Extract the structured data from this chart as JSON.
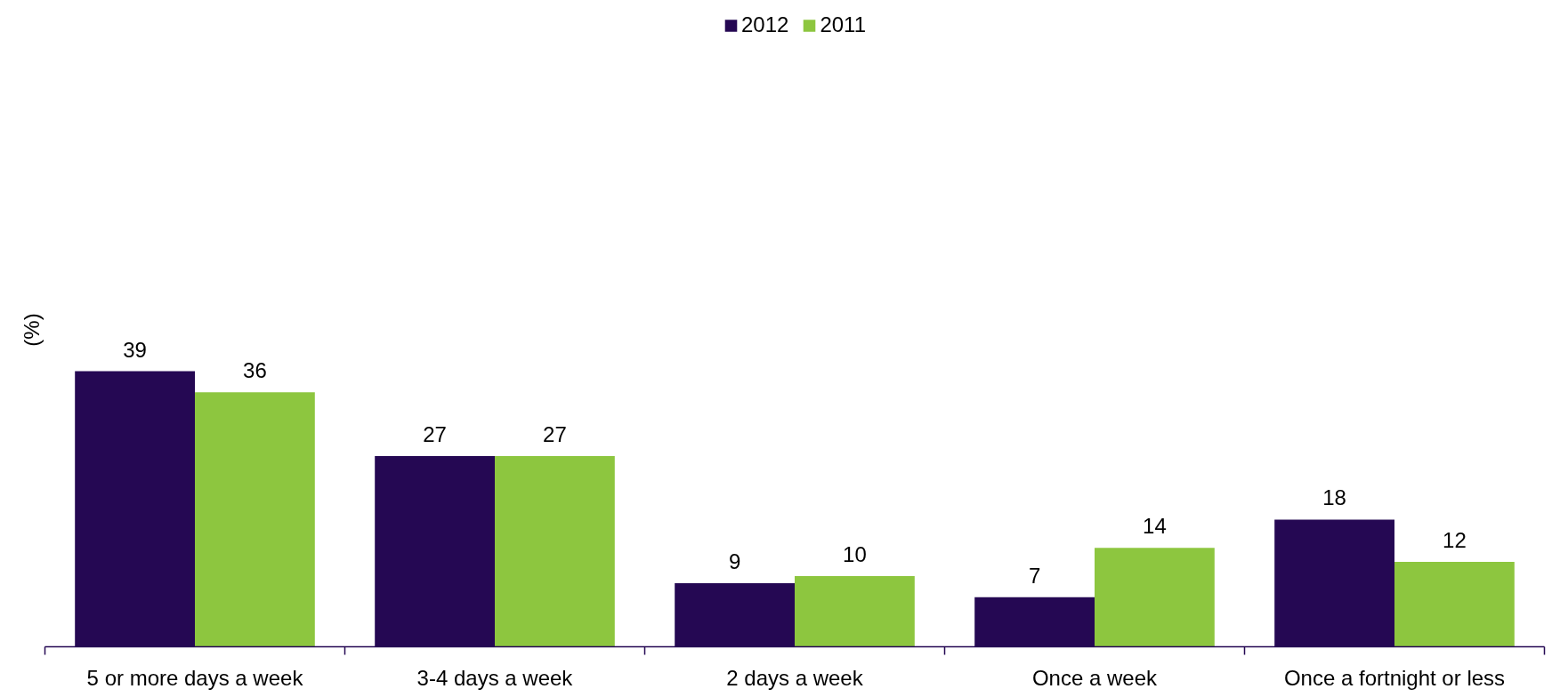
{
  "chart_data": {
    "type": "bar",
    "ylabel": "(%)",
    "categories": [
      "5 or more days a week",
      "3-4 days a week",
      "2 days a week",
      "Once a week",
      "Once a fortnight or less"
    ],
    "series": [
      {
        "name": "2012",
        "color": "#250853",
        "values": [
          39,
          27,
          9,
          7,
          18
        ]
      },
      {
        "name": "2011",
        "color": "#8dc63f",
        "values": [
          36,
          27,
          10,
          14,
          12
        ]
      }
    ],
    "data_labels": true,
    "legend": "top"
  }
}
